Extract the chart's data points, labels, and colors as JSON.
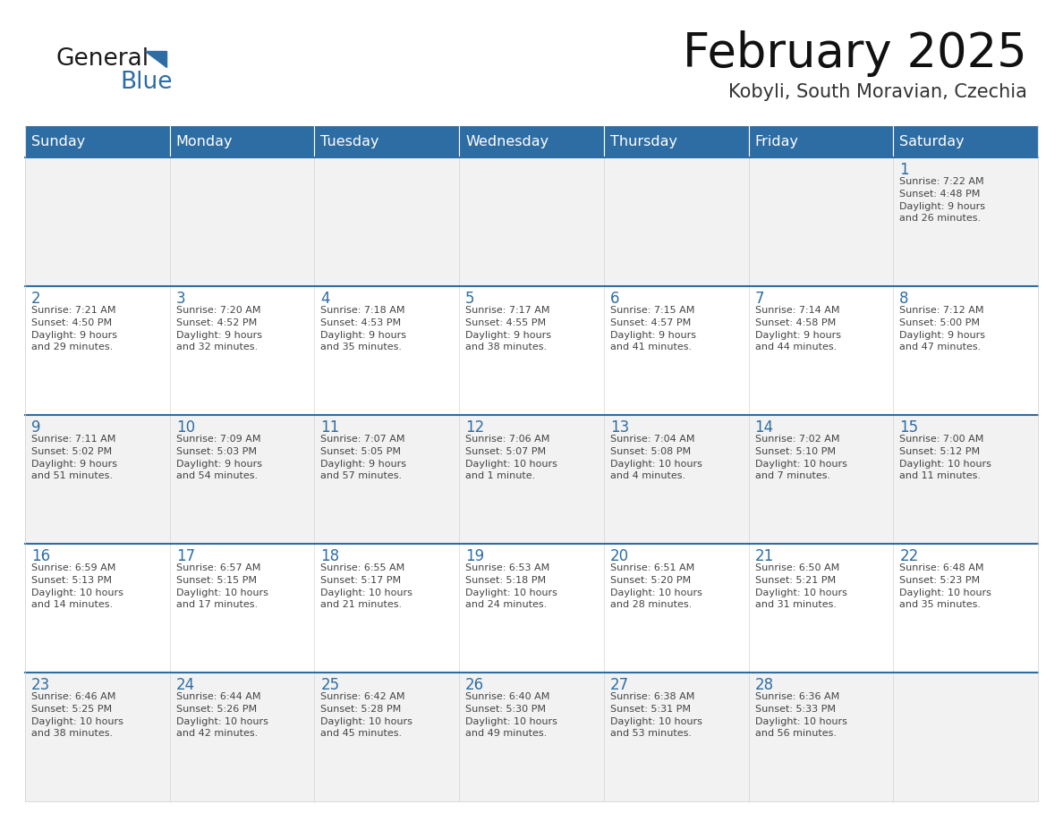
{
  "title": "February 2025",
  "subtitle": "Kobyli, South Moravian, Czechia",
  "header_bg": "#2E6DA4",
  "header_text": "#FFFFFF",
  "cell_bg_odd": "#F2F2F2",
  "cell_bg_even": "#FFFFFF",
  "day_number_color": "#2E6DA4",
  "text_color": "#444444",
  "line_color": "#2E6DA4",
  "days_of_week": [
    "Sunday",
    "Monday",
    "Tuesday",
    "Wednesday",
    "Thursday",
    "Friday",
    "Saturday"
  ],
  "weeks": [
    [
      {
        "day": null,
        "info": null
      },
      {
        "day": null,
        "info": null
      },
      {
        "day": null,
        "info": null
      },
      {
        "day": null,
        "info": null
      },
      {
        "day": null,
        "info": null
      },
      {
        "day": null,
        "info": null
      },
      {
        "day": 1,
        "info": "Sunrise: 7:22 AM\nSunset: 4:48 PM\nDaylight: 9 hours\nand 26 minutes."
      }
    ],
    [
      {
        "day": 2,
        "info": "Sunrise: 7:21 AM\nSunset: 4:50 PM\nDaylight: 9 hours\nand 29 minutes."
      },
      {
        "day": 3,
        "info": "Sunrise: 7:20 AM\nSunset: 4:52 PM\nDaylight: 9 hours\nand 32 minutes."
      },
      {
        "day": 4,
        "info": "Sunrise: 7:18 AM\nSunset: 4:53 PM\nDaylight: 9 hours\nand 35 minutes."
      },
      {
        "day": 5,
        "info": "Sunrise: 7:17 AM\nSunset: 4:55 PM\nDaylight: 9 hours\nand 38 minutes."
      },
      {
        "day": 6,
        "info": "Sunrise: 7:15 AM\nSunset: 4:57 PM\nDaylight: 9 hours\nand 41 minutes."
      },
      {
        "day": 7,
        "info": "Sunrise: 7:14 AM\nSunset: 4:58 PM\nDaylight: 9 hours\nand 44 minutes."
      },
      {
        "day": 8,
        "info": "Sunrise: 7:12 AM\nSunset: 5:00 PM\nDaylight: 9 hours\nand 47 minutes."
      }
    ],
    [
      {
        "day": 9,
        "info": "Sunrise: 7:11 AM\nSunset: 5:02 PM\nDaylight: 9 hours\nand 51 minutes."
      },
      {
        "day": 10,
        "info": "Sunrise: 7:09 AM\nSunset: 5:03 PM\nDaylight: 9 hours\nand 54 minutes."
      },
      {
        "day": 11,
        "info": "Sunrise: 7:07 AM\nSunset: 5:05 PM\nDaylight: 9 hours\nand 57 minutes."
      },
      {
        "day": 12,
        "info": "Sunrise: 7:06 AM\nSunset: 5:07 PM\nDaylight: 10 hours\nand 1 minute."
      },
      {
        "day": 13,
        "info": "Sunrise: 7:04 AM\nSunset: 5:08 PM\nDaylight: 10 hours\nand 4 minutes."
      },
      {
        "day": 14,
        "info": "Sunrise: 7:02 AM\nSunset: 5:10 PM\nDaylight: 10 hours\nand 7 minutes."
      },
      {
        "day": 15,
        "info": "Sunrise: 7:00 AM\nSunset: 5:12 PM\nDaylight: 10 hours\nand 11 minutes."
      }
    ],
    [
      {
        "day": 16,
        "info": "Sunrise: 6:59 AM\nSunset: 5:13 PM\nDaylight: 10 hours\nand 14 minutes."
      },
      {
        "day": 17,
        "info": "Sunrise: 6:57 AM\nSunset: 5:15 PM\nDaylight: 10 hours\nand 17 minutes."
      },
      {
        "day": 18,
        "info": "Sunrise: 6:55 AM\nSunset: 5:17 PM\nDaylight: 10 hours\nand 21 minutes."
      },
      {
        "day": 19,
        "info": "Sunrise: 6:53 AM\nSunset: 5:18 PM\nDaylight: 10 hours\nand 24 minutes."
      },
      {
        "day": 20,
        "info": "Sunrise: 6:51 AM\nSunset: 5:20 PM\nDaylight: 10 hours\nand 28 minutes."
      },
      {
        "day": 21,
        "info": "Sunrise: 6:50 AM\nSunset: 5:21 PM\nDaylight: 10 hours\nand 31 minutes."
      },
      {
        "day": 22,
        "info": "Sunrise: 6:48 AM\nSunset: 5:23 PM\nDaylight: 10 hours\nand 35 minutes."
      }
    ],
    [
      {
        "day": 23,
        "info": "Sunrise: 6:46 AM\nSunset: 5:25 PM\nDaylight: 10 hours\nand 38 minutes."
      },
      {
        "day": 24,
        "info": "Sunrise: 6:44 AM\nSunset: 5:26 PM\nDaylight: 10 hours\nand 42 minutes."
      },
      {
        "day": 25,
        "info": "Sunrise: 6:42 AM\nSunset: 5:28 PM\nDaylight: 10 hours\nand 45 minutes."
      },
      {
        "day": 26,
        "info": "Sunrise: 6:40 AM\nSunset: 5:30 PM\nDaylight: 10 hours\nand 49 minutes."
      },
      {
        "day": 27,
        "info": "Sunrise: 6:38 AM\nSunset: 5:31 PM\nDaylight: 10 hours\nand 53 minutes."
      },
      {
        "day": 28,
        "info": "Sunrise: 6:36 AM\nSunset: 5:33 PM\nDaylight: 10 hours\nand 56 minutes."
      },
      {
        "day": null,
        "info": null
      }
    ]
  ],
  "logo_general_color": "#1a1a1a",
  "logo_blue_color": "#2E6DA4",
  "logo_triangle_color": "#2E6DA4"
}
